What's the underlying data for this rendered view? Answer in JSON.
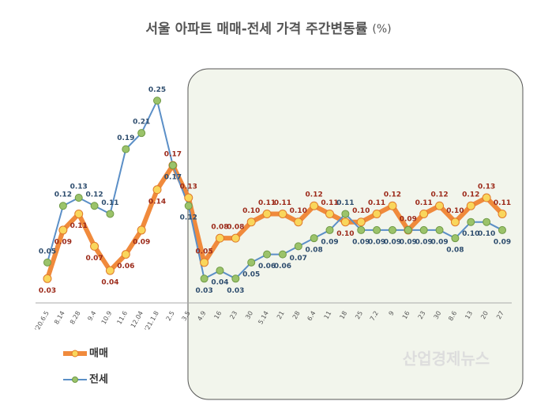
{
  "chart_data": {
    "type": "line",
    "title": "서울 아파트 매매-전세 가격 주간변동률",
    "unit": "(%)",
    "categories": [
      "'20.6.5",
      "8.14",
      "8.28",
      "9.4",
      "10.9",
      "11.6",
      "12.04",
      "'21.1.8",
      "2.5",
      "3.5",
      "4.9",
      "16",
      "23",
      "30",
      "5.14",
      "21",
      "28",
      "6.4",
      "11",
      "18",
      "25",
      "7.2",
      "9",
      "16",
      "23",
      "30",
      "8.6",
      "13",
      "20",
      "27"
    ],
    "series": [
      {
        "name": "매매",
        "color": "#f08a3c",
        "marker": "#f9d65c",
        "values": [
          0.03,
          0.09,
          0.11,
          0.07,
          0.04,
          0.06,
          0.09,
          0.14,
          0.17,
          0.13,
          0.05,
          0.08,
          0.08,
          0.1,
          0.11,
          0.11,
          0.1,
          0.12,
          0.11,
          0.1,
          0.1,
          0.11,
          0.12,
          0.09,
          0.11,
          0.12,
          0.1,
          0.12,
          0.13,
          0.11
        ],
        "value_labels": [
          "0.03",
          "0.09",
          "0.11",
          "0.07",
          "0.04",
          "0.06",
          "0.09",
          "0.14",
          "0.17",
          "0.13",
          "0.05",
          "0.08",
          "0.08",
          "0.10",
          "0.11",
          "0.11",
          "0.10",
          "0.12",
          "0.11",
          "0.10",
          "0.10",
          "0.11",
          "0.12",
          "0.09",
          "0.11",
          "0.12",
          "0.10",
          "0.12",
          "0.13",
          "0.11"
        ]
      },
      {
        "name": "전세",
        "color": "#5b8fc7",
        "marker": "#9bc36a",
        "values": [
          0.05,
          0.12,
          0.13,
          0.12,
          0.11,
          0.19,
          0.21,
          0.25,
          0.17,
          0.12,
          0.03,
          0.04,
          0.03,
          0.05,
          0.06,
          0.06,
          0.07,
          0.08,
          0.09,
          0.11,
          0.09,
          0.09,
          0.09,
          0.09,
          0.09,
          0.09,
          0.08,
          0.1,
          0.1,
          0.09
        ],
        "value_labels": [
          "0.05",
          "0.12",
          "0.13",
          "0.12",
          "0.11",
          "0.19",
          "0.21",
          "0.25",
          "0.17",
          "0.12",
          "0.03",
          "0.04",
          "0.03",
          "0.05",
          "0.06",
          "0.06",
          "0.07",
          "0.08",
          "0.09",
          "0.11",
          "0.09",
          "0.09",
          "0.09",
          "0.09",
          "0.09",
          "0.09",
          "0.08",
          "0.10",
          "0.10",
          "0.09"
        ]
      }
    ],
    "watermark": "산업경제뉴스"
  }
}
